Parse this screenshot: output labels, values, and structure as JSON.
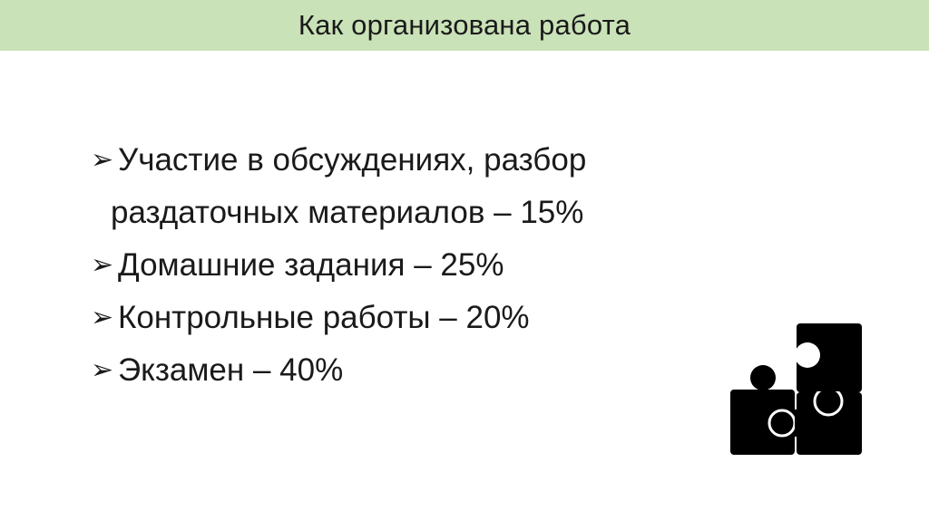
{
  "slide": {
    "title": "Как организована работа",
    "bullet_icon": "arrow-bullet-icon",
    "bullets": [
      {
        "line1": "Участие в обсуждениях, разбор",
        "line2": "раздаточных материалов – 15%"
      },
      {
        "line1": "Домашние задания – 25%"
      },
      {
        "line1": "Контрольные работы – 20%"
      },
      {
        "line1": "Экзамен – 40%"
      }
    ],
    "illustration": "puzzle-icon",
    "colors": {
      "header_bg": "#c9e2b8",
      "text": "#1a1a1a",
      "icon": "#000000"
    }
  }
}
